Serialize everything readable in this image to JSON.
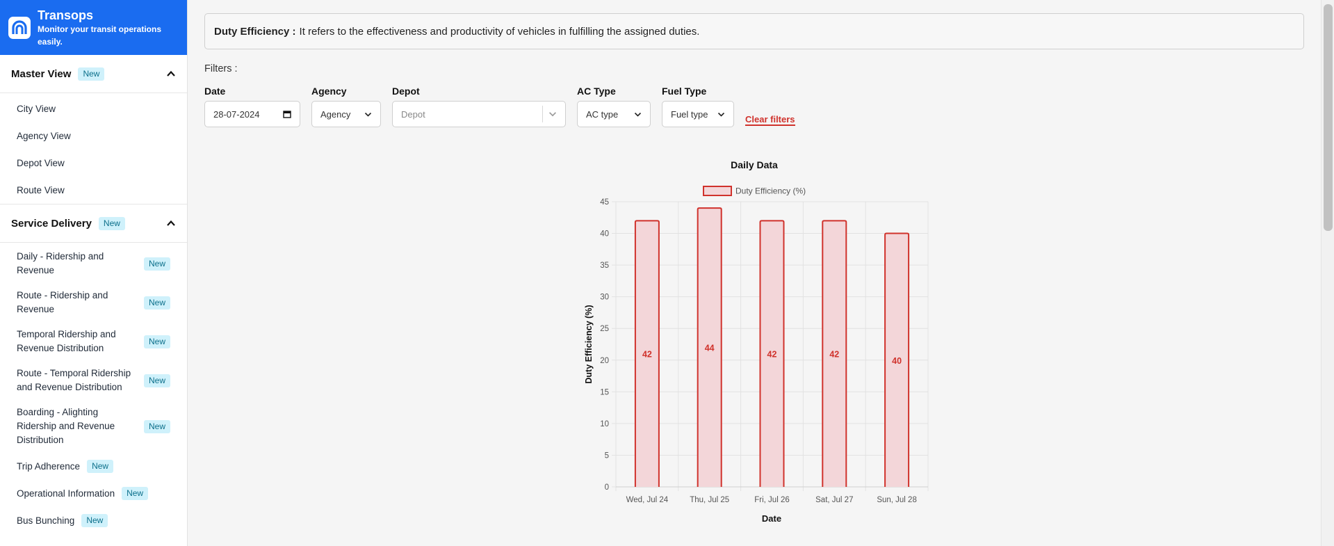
{
  "brand": {
    "title": "Transops",
    "subtitle": "Monitor your transit operations easily."
  },
  "sidebar": {
    "sections": [
      {
        "title": "Master View",
        "badge": "New",
        "items": [
          "City View",
          "Agency View",
          "Depot View",
          "Route View"
        ]
      },
      {
        "title": "Service Delivery",
        "badge": "New",
        "items": [
          {
            "label": "Daily - Ridership and Revenue",
            "badge": "New"
          },
          {
            "label": "Route - Ridership and Revenue",
            "badge": "New"
          },
          {
            "label": "Temporal Ridership and Revenue Distribution",
            "badge": "New"
          },
          {
            "label": "Route - Temporal Ridership and Revenue Distribution",
            "badge": "New"
          },
          {
            "label": "Boarding - Alighting Ridership and Revenue Distribution",
            "badge": "New"
          },
          {
            "label": "Trip Adherence",
            "badge": "New"
          },
          {
            "label": "Operational Information",
            "badge": "New"
          },
          {
            "label": "Bus Bunching",
            "badge": "New"
          }
        ]
      }
    ]
  },
  "info": {
    "term": "Duty Efficiency :",
    "definition": "It refers to the effectiveness and productivity of vehicles in fulfilling the assigned duties."
  },
  "filters": {
    "label": "Filters :",
    "date": {
      "label": "Date",
      "value": "28-07-2024"
    },
    "agency": {
      "label": "Agency",
      "value": "Agency"
    },
    "depot": {
      "label": "Depot",
      "placeholder": "Depot"
    },
    "ac_type": {
      "label": "AC Type",
      "value": "AC type"
    },
    "fuel_type": {
      "label": "Fuel Type",
      "value": "Fuel type"
    },
    "clear": "Clear filters"
  },
  "colors": {
    "brand": "#1a6cf0",
    "bar_fill": "#f3d6d9",
    "bar_stroke": "#d0322c",
    "badge_bg": "#cff1fb"
  },
  "chart_data": {
    "type": "bar",
    "title": "Daily Data",
    "legend": "Duty Efficiency (%)",
    "legend_position": "top",
    "xlabel": "Date",
    "ylabel": "Duty Efficiency (%)",
    "categories": [
      "Wed, Jul 24",
      "Thu, Jul 25",
      "Fri, Jul 26",
      "Sat, Jul 27",
      "Sun, Jul 28"
    ],
    "values": [
      42,
      44,
      42,
      42,
      40
    ],
    "ylim": [
      0,
      45
    ],
    "yticks": [
      0,
      5,
      10,
      15,
      20,
      25,
      30,
      35,
      40,
      45
    ],
    "grid": true
  }
}
